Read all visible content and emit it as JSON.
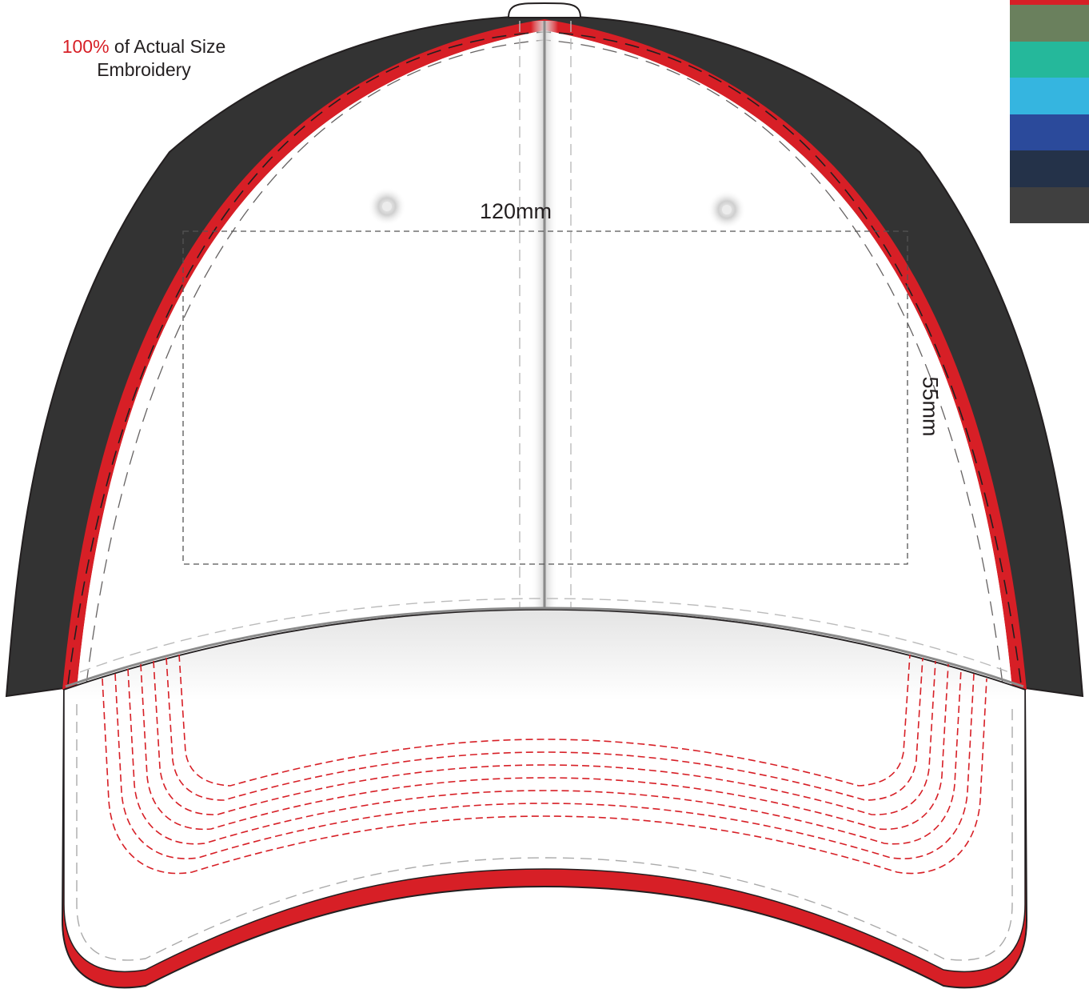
{
  "size_note": {
    "percent": "100%",
    "rest_line1": " of Actual Size",
    "line2": "Embroidery"
  },
  "embroidery_area": {
    "width_label": "120mm",
    "height_label": "55mm"
  },
  "cap": {
    "crown_color": "#ffffff",
    "side_panel_color": "#333333",
    "piping_color": "#d71f26",
    "stitch_color": "#d71f26"
  },
  "swatches": [
    {
      "name": "red",
      "color": "#d71f26"
    },
    {
      "name": "olive-green",
      "color": "#6a805d"
    },
    {
      "name": "teal",
      "color": "#25b89b"
    },
    {
      "name": "sky-blue",
      "color": "#35b5e0"
    },
    {
      "name": "royal-blue",
      "color": "#2b4a9b"
    },
    {
      "name": "navy",
      "color": "#243249"
    },
    {
      "name": "charcoal",
      "color": "#404040"
    }
  ]
}
